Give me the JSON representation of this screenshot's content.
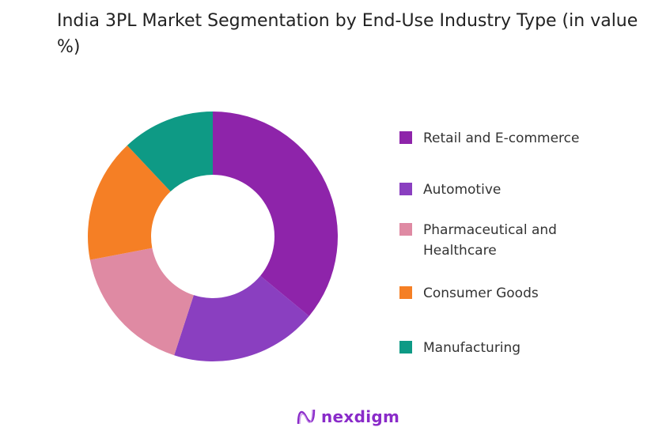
{
  "chart_data": {
    "type": "pie",
    "title": "India 3PL Market Segmentation by End-Use Industry Type (in value %)",
    "categories": [
      "Retail and E-commerce",
      "Automotive",
      "Pharmaceutical and Healthcare",
      "Consumer Goods",
      "Manufacturing"
    ],
    "values": [
      36,
      19,
      17,
      16,
      12
    ],
    "colors": [
      "#8e24aa",
      "#8a3fc0",
      "#df8aa3",
      "#f57f25",
      "#0e9a85"
    ],
    "donut": true,
    "legend_position": "right"
  },
  "brand": {
    "name": "nexdigm",
    "color": "#8a2bc9"
  }
}
